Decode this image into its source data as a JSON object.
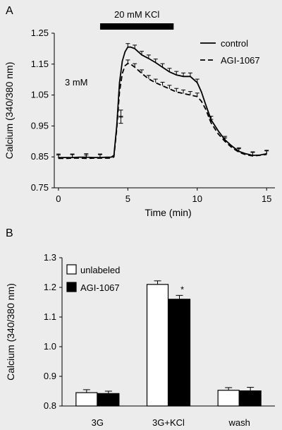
{
  "chart_data": [
    {
      "panel": "A",
      "type": "line",
      "xlabel": "Time (min)",
      "ylabel": "Calcium (340/380 nm)",
      "xlim": [
        -0.3,
        15.6
      ],
      "ylim": [
        0.75,
        1.25
      ],
      "xticks": [
        "0",
        "5",
        "10",
        "15"
      ],
      "yticks": [
        "0.75",
        "0.85",
        "0.95",
        "1.05",
        "1.15",
        "1.25"
      ],
      "annotation": "3 mM",
      "stim_label": "20 mM KCl",
      "stim_range": [
        3.0,
        8.3
      ],
      "legend_position": "top-right",
      "series": [
        {
          "name": "control",
          "style": "solid",
          "x": [
            0,
            0.5,
            1,
            1.5,
            2,
            2.5,
            3,
            3.5,
            3.8,
            4.0,
            4.2,
            4.4,
            4.6,
            4.8,
            5.0,
            5.2,
            5.5,
            6.0,
            6.5,
            7.0,
            7.5,
            8.0,
            8.5,
            9.0,
            9.5,
            10.0,
            10.3,
            10.6,
            11.0,
            11.5,
            12.0,
            12.5,
            13.0,
            13.5,
            14.0,
            14.5,
            15.0
          ],
          "y": [
            0.848,
            0.848,
            0.848,
            0.849,
            0.849,
            0.848,
            0.848,
            0.849,
            0.849,
            0.855,
            0.95,
            1.09,
            1.16,
            1.19,
            1.205,
            1.205,
            1.2,
            1.18,
            1.168,
            1.155,
            1.14,
            1.125,
            1.115,
            1.11,
            1.11,
            1.09,
            1.06,
            1.02,
            0.97,
            0.935,
            0.905,
            0.885,
            0.868,
            0.86,
            0.855,
            0.856,
            0.86
          ],
          "error_x": [
            0,
            1,
            2,
            3,
            4.5,
            5,
            5.5,
            6,
            6.5,
            7,
            7.5,
            8,
            8.5,
            9,
            9.5,
            10,
            11,
            12,
            13,
            14,
            15
          ],
          "error_y": [
            0.848,
            0.848,
            0.849,
            0.848,
            0.99,
            1.205,
            1.2,
            1.18,
            1.168,
            1.155,
            1.14,
            1.125,
            1.115,
            1.11,
            1.11,
            1.09,
            0.97,
            0.905,
            0.868,
            0.855,
            0.86
          ]
        },
        {
          "name": "AGI-1067",
          "style": "dashed",
          "x": [
            0,
            0.5,
            1,
            1.5,
            2,
            2.5,
            3,
            3.5,
            3.8,
            4.0,
            4.2,
            4.4,
            4.6,
            4.8,
            5.0,
            5.2,
            5.5,
            6.0,
            6.5,
            7.0,
            7.5,
            8.0,
            8.5,
            9.0,
            9.5,
            10.0,
            10.3,
            10.6,
            11.0,
            11.5,
            12.0,
            12.5,
            13.0,
            13.5,
            14.0,
            14.5,
            15.0
          ],
          "y": [
            0.845,
            0.845,
            0.846,
            0.846,
            0.845,
            0.846,
            0.846,
            0.846,
            0.846,
            0.85,
            0.94,
            1.06,
            1.12,
            1.145,
            1.152,
            1.15,
            1.14,
            1.12,
            1.102,
            1.09,
            1.08,
            1.07,
            1.06,
            1.055,
            1.05,
            1.045,
            1.03,
            1.005,
            0.96,
            0.925,
            0.9,
            0.88,
            0.865,
            0.857,
            0.853,
            0.855,
            0.858
          ],
          "error_x": [
            0,
            1,
            2,
            3,
            4.5,
            5,
            5.5,
            6,
            6.5,
            7,
            7.5,
            8,
            8.5,
            9,
            9.5,
            10,
            11,
            12,
            13,
            14,
            15
          ],
          "error_y": [
            0.845,
            0.846,
            0.845,
            0.846,
            0.97,
            1.152,
            1.14,
            1.12,
            1.102,
            1.09,
            1.08,
            1.07,
            1.06,
            1.055,
            1.05,
            1.045,
            0.96,
            0.9,
            0.865,
            0.853,
            0.858
          ]
        }
      ]
    },
    {
      "panel": "B",
      "type": "bar",
      "ylabel": "Calcium (340/380 nm)",
      "ylim": [
        0.8,
        1.3
      ],
      "yticks": [
        "0.8",
        "0.9",
        "1.0",
        "1.1",
        "1.2",
        "1.3"
      ],
      "categories": [
        "3G",
        "3G+KCl",
        "wash"
      ],
      "legend_position": "top-left",
      "significance_label": "*",
      "series": [
        {
          "name": "unlabeled",
          "color": "#ffffff",
          "values": [
            0.845,
            1.21,
            0.853
          ],
          "errors": [
            0.01,
            0.012,
            0.009
          ]
        },
        {
          "name": "AGI-1067",
          "color": "#000000",
          "values": [
            0.842,
            1.16,
            0.851
          ],
          "errors": [
            0.008,
            0.013,
            0.012
          ]
        }
      ]
    }
  ]
}
